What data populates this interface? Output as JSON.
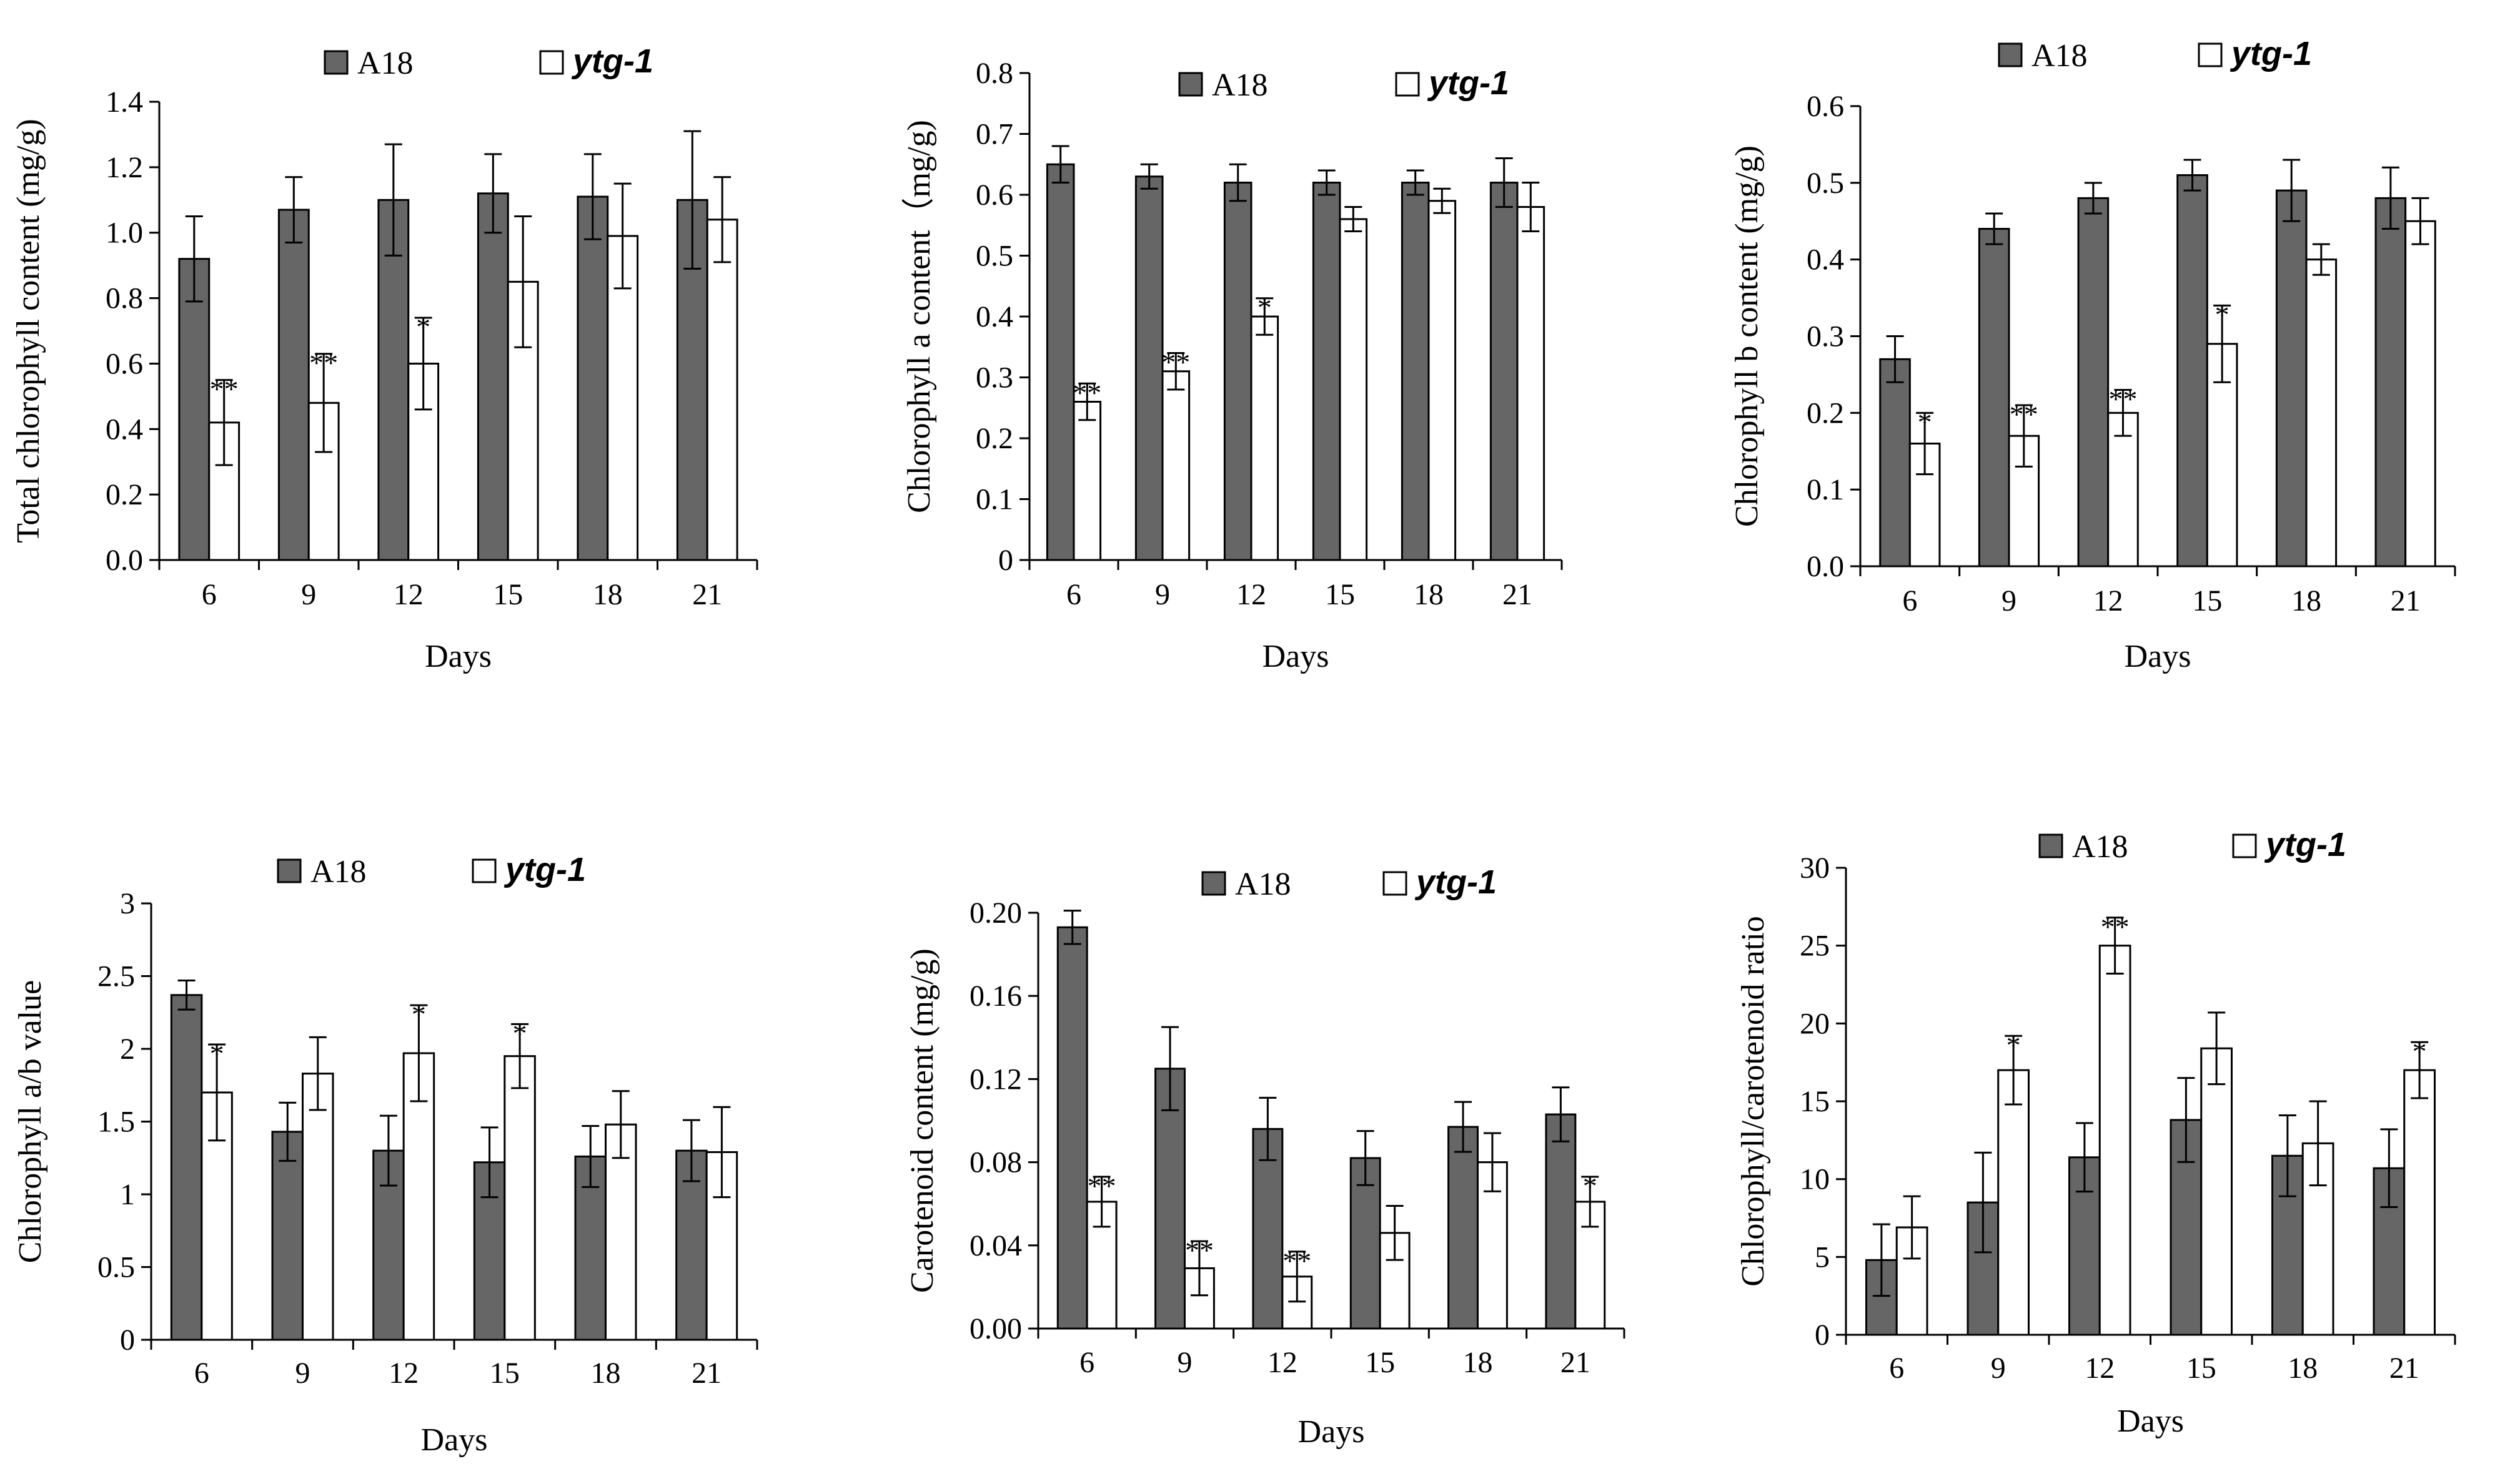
{
  "colors": {
    "A18": "#666666",
    "ytg": "#ffffff",
    "stroke": "#000000"
  },
  "chart_data": [
    {
      "type": "bar",
      "categories": [
        "6",
        "9",
        "12",
        "15",
        "18",
        "21"
      ],
      "xlabel": "Days",
      "ylabel": "Total chlorophyll content (mg/g)",
      "ylim": [
        0,
        1.4
      ],
      "yticks": [
        "0.0",
        "0.2",
        "0.4",
        "0.6",
        "0.8",
        "1.0",
        "1.2",
        "1.4"
      ],
      "series": [
        {
          "name": "A18",
          "values": [
            0.92,
            1.07,
            1.1,
            1.12,
            1.11,
            1.1
          ],
          "errors": [
            0.13,
            0.1,
            0.17,
            0.12,
            0.13,
            0.21
          ]
        },
        {
          "name": "ytg-1",
          "values": [
            0.42,
            0.48,
            0.6,
            0.85,
            0.99,
            1.04
          ],
          "errors": [
            0.13,
            0.15,
            0.14,
            0.2,
            0.16,
            0.13
          ],
          "significance": [
            "**",
            "**",
            "*",
            "",
            "",
            ""
          ]
        }
      ],
      "legend": "top"
    },
    {
      "type": "bar",
      "categories": [
        "6",
        "9",
        "12",
        "15",
        "18",
        "21"
      ],
      "xlabel": "Days",
      "ylabel": "Chlorophyll a content（mg/g)",
      "ylim": [
        0,
        0.8
      ],
      "yticks": [
        "0",
        "0.1",
        "0.2",
        "0.3",
        "0.4",
        "0.5",
        "0.6",
        "0.7",
        "0.8"
      ],
      "series": [
        {
          "name": "A18",
          "values": [
            0.65,
            0.63,
            0.62,
            0.62,
            0.62,
            0.62
          ],
          "errors": [
            0.03,
            0.02,
            0.03,
            0.02,
            0.02,
            0.04
          ]
        },
        {
          "name": "ytg-1",
          "values": [
            0.26,
            0.31,
            0.4,
            0.56,
            0.59,
            0.58
          ],
          "errors": [
            0.03,
            0.03,
            0.03,
            0.02,
            0.02,
            0.04
          ],
          "significance": [
            "**",
            "**",
            "*",
            "",
            "",
            ""
          ]
        }
      ],
      "legend": "top"
    },
    {
      "type": "bar",
      "categories": [
        "6",
        "9",
        "12",
        "15",
        "18",
        "21"
      ],
      "xlabel": "Days",
      "ylabel": "Chlorophyll b content (mg/g)",
      "ylim": [
        0,
        0.6
      ],
      "yticks": [
        "0.0",
        "0.1",
        "0.2",
        "0.3",
        "0.4",
        "0.5",
        "0.6"
      ],
      "series": [
        {
          "name": "A18",
          "values": [
            0.27,
            0.44,
            0.48,
            0.51,
            0.49,
            0.48
          ],
          "errors": [
            0.03,
            0.02,
            0.02,
            0.02,
            0.04,
            0.04
          ]
        },
        {
          "name": "ytg-1",
          "values": [
            0.16,
            0.17,
            0.2,
            0.29,
            0.4,
            0.45
          ],
          "errors": [
            0.04,
            0.04,
            0.03,
            0.05,
            0.02,
            0.03
          ],
          "significance": [
            "*",
            "**",
            "**",
            "*",
            "",
            ""
          ]
        }
      ],
      "legend": "top"
    },
    {
      "type": "bar",
      "categories": [
        "6",
        "9",
        "12",
        "15",
        "18",
        "21"
      ],
      "xlabel": "Days",
      "ylabel": "Chlorophyll a/b value",
      "ylim": [
        0,
        3
      ],
      "yticks": [
        "0",
        "0.5",
        "1",
        "1.5",
        "2",
        "2.5",
        "3"
      ],
      "series": [
        {
          "name": "A18",
          "values": [
            2.37,
            1.43,
            1.3,
            1.22,
            1.26,
            1.3
          ],
          "errors": [
            0.1,
            0.2,
            0.24,
            0.24,
            0.21,
            0.21
          ]
        },
        {
          "name": "ytg-1",
          "values": [
            1.7,
            1.83,
            1.97,
            1.95,
            1.48,
            1.29
          ],
          "errors": [
            0.33,
            0.25,
            0.33,
            0.22,
            0.23,
            0.31
          ],
          "significance": [
            "*",
            "",
            "*",
            "*",
            "",
            ""
          ]
        }
      ],
      "legend": "top"
    },
    {
      "type": "bar",
      "categories": [
        "6",
        "9",
        "12",
        "15",
        "18",
        "21"
      ],
      "xlabel": "Days",
      "ylabel": "Carotenoid content (mg/g)",
      "ylim": [
        0,
        0.2
      ],
      "yticks": [
        "0.00",
        "0.04",
        "0.08",
        "0.12",
        "0.16",
        "0.20"
      ],
      "series": [
        {
          "name": "A18",
          "values": [
            0.193,
            0.125,
            0.096,
            0.082,
            0.097,
            0.103
          ],
          "errors": [
            0.008,
            0.02,
            0.015,
            0.013,
            0.012,
            0.013
          ]
        },
        {
          "name": "ytg-1",
          "values": [
            0.061,
            0.029,
            0.025,
            0.046,
            0.08,
            0.061
          ],
          "errors": [
            0.012,
            0.013,
            0.012,
            0.013,
            0.014,
            0.012
          ],
          "significance": [
            "**",
            "**",
            "**",
            "",
            "",
            "*"
          ]
        }
      ],
      "legend": "top"
    },
    {
      "type": "bar",
      "categories": [
        "6",
        "9",
        "12",
        "15",
        "18",
        "21"
      ],
      "xlabel": "Days",
      "ylabel": "Chlorophyll/carotenoid ratio",
      "ylim": [
        0,
        30
      ],
      "yticks": [
        "0",
        "5",
        "10",
        "15",
        "20",
        "25",
        "30"
      ],
      "series": [
        {
          "name": "A18",
          "values": [
            4.8,
            8.5,
            11.4,
            13.8,
            11.5,
            10.7
          ],
          "errors": [
            2.3,
            3.2,
            2.2,
            2.7,
            2.6,
            2.5
          ]
        },
        {
          "name": "ytg-1",
          "values": [
            6.9,
            17.0,
            25.0,
            18.4,
            12.3,
            17.0
          ],
          "errors": [
            2.0,
            2.2,
            1.8,
            2.3,
            2.7,
            1.8
          ],
          "significance": [
            "",
            "*",
            "**",
            "",
            "",
            "*"
          ]
        }
      ],
      "legend": "top"
    }
  ]
}
